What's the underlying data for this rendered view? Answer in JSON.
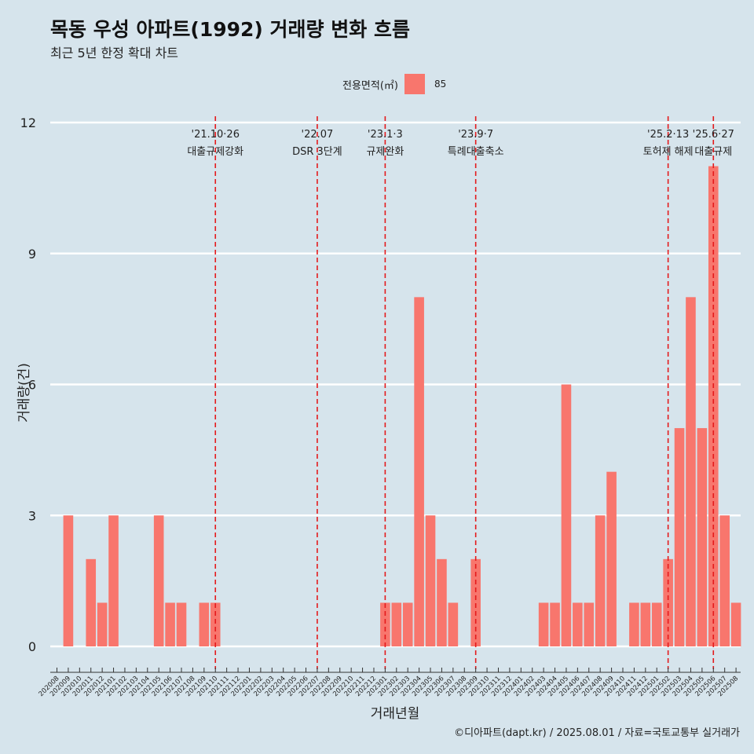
{
  "header": {
    "title": "목동 우성 아파트(1992) 거래량 변화 흐름",
    "subtitle": "최근 5년 한정 확대 차트"
  },
  "legend": {
    "title": "전용면적(㎡)",
    "items": [
      {
        "label": "85",
        "color": "#f8766d"
      }
    ]
  },
  "caption": "©디아파트(dapt.kr) / 2025.08.01 / 자료=국토교통부 실거래가",
  "chart_data": {
    "type": "bar",
    "title": "목동 우성 아파트(1992) 거래량 변화 흐름",
    "subtitle": "최근 5년 한정 확대 차트",
    "xlabel": "거래년월",
    "ylabel": "거래량(건)",
    "ylim": [
      0,
      12
    ],
    "yticks": [
      0,
      3,
      6,
      9,
      12
    ],
    "grid": "horizontal",
    "legend_position": "top",
    "bar_color": "#f8766d",
    "categories": [
      "202008",
      "202009",
      "202010",
      "202011",
      "202012",
      "202101",
      "202102",
      "202103",
      "202104",
      "202105",
      "202106",
      "202107",
      "202108",
      "202109",
      "202110",
      "202111",
      "202112",
      "202201",
      "202202",
      "202203",
      "202204",
      "202205",
      "202206",
      "202207",
      "202208",
      "202209",
      "202210",
      "202211",
      "202212",
      "202301",
      "202302",
      "202303",
      "202304",
      "202305",
      "202306",
      "202307",
      "202308",
      "202309",
      "202310",
      "202311",
      "202312",
      "202401",
      "202402",
      "202403",
      "202404",
      "202405",
      "202406",
      "202407",
      "202408",
      "202409",
      "202410",
      "202411",
      "202412",
      "202501",
      "202502",
      "202503",
      "202504",
      "202505",
      "202506",
      "202507",
      "202508"
    ],
    "series": [
      {
        "name": "85",
        "values": [
          0,
          3,
          0,
          2,
          1,
          3,
          0,
          0,
          0,
          3,
          1,
          1,
          0,
          1,
          1,
          0,
          0,
          0,
          0,
          0,
          0,
          0,
          0,
          0,
          0,
          0,
          0,
          0,
          0,
          1,
          1,
          1,
          8,
          3,
          2,
          1,
          0,
          2,
          0,
          0,
          0,
          0,
          0,
          1,
          1,
          6,
          1,
          1,
          3,
          4,
          0,
          1,
          1,
          1,
          2,
          5,
          8,
          5,
          11,
          3,
          1
        ]
      }
    ],
    "events": [
      {
        "date": "'21.10·26",
        "label": "대출규제강화",
        "month": "202110"
      },
      {
        "date": "'22.07",
        "label": "DSR 3단계",
        "month": "202207"
      },
      {
        "date": "'23.1·3",
        "label": "규제완화",
        "month": "202301"
      },
      {
        "date": "'23.9·7",
        "label": "특례대출축소",
        "month": "202309"
      },
      {
        "date": "'25.2·13",
        "label": "토허제 해제",
        "month": "202502"
      },
      {
        "date": "'25.6·27",
        "label": "대출규제",
        "month": "202506"
      }
    ]
  }
}
